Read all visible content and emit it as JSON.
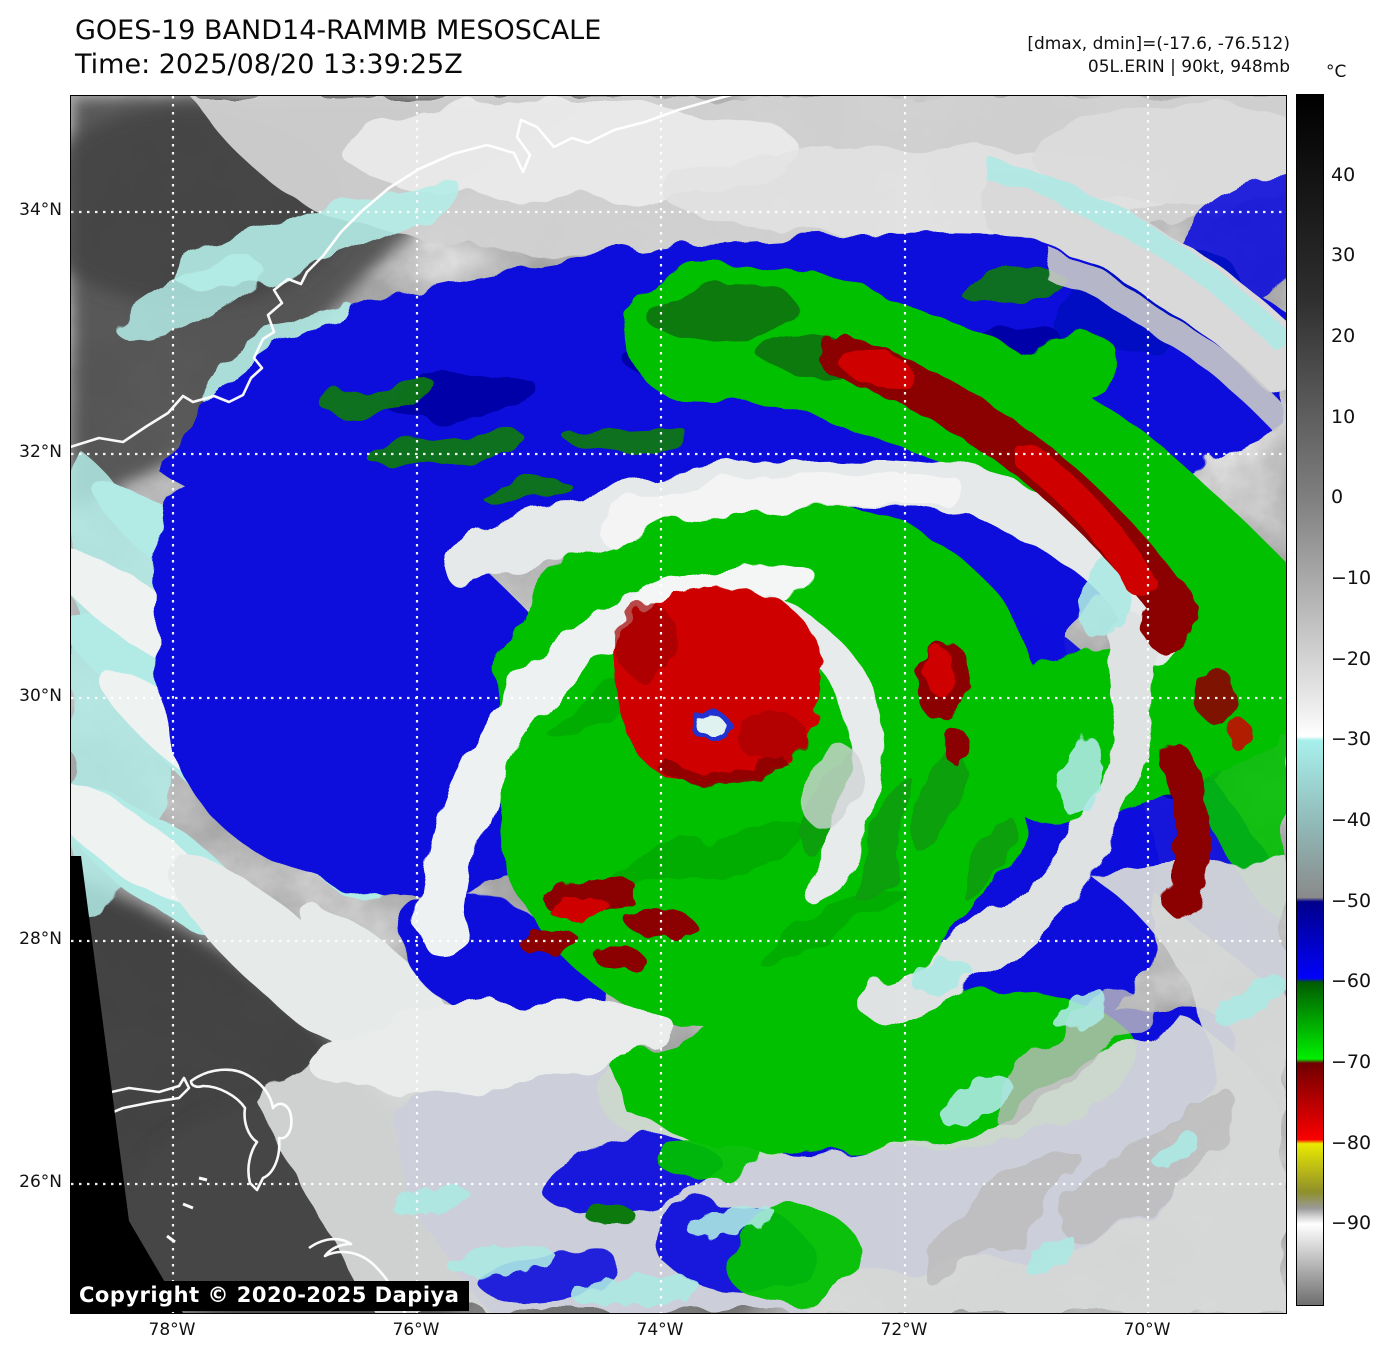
{
  "header": {
    "title": "GOES-19 BAND14-RAMMB MESOSCALE",
    "time_label": "Time: 2025/08/20 13:39:25Z",
    "range_label": "[dmax, dmin]=(-17.6, -76.512)",
    "storm_label": "05L.ERIN | 90kt, 948mb"
  },
  "map": {
    "copyright": "Copyright © 2020-2025 Dapiya",
    "lat_ticks": [
      "34°N",
      "32°N",
      "30°N",
      "28°N",
      "26°N"
    ],
    "lon_ticks": [
      "78°W",
      "76°W",
      "74°W",
      "72°W",
      "70°W"
    ]
  },
  "colorbar": {
    "unit": "°C",
    "ticks": [
      {
        "t": 40,
        "label": "40"
      },
      {
        "t": 30,
        "label": "30"
      },
      {
        "t": 20,
        "label": "20"
      },
      {
        "t": 10,
        "label": "10"
      },
      {
        "t": 0,
        "label": "0"
      },
      {
        "t": -10,
        "label": "−10"
      },
      {
        "t": -20,
        "label": "−20"
      },
      {
        "t": -30,
        "label": "−30"
      },
      {
        "t": -40,
        "label": "−40"
      },
      {
        "t": -50,
        "label": "−50"
      },
      {
        "t": -60,
        "label": "−60"
      },
      {
        "t": -70,
        "label": "−70"
      },
      {
        "t": -80,
        "label": "−80"
      },
      {
        "t": -90,
        "label": "−90"
      }
    ],
    "scale_max": 50,
    "scale_min": -100,
    "stops": [
      {
        "t": 50,
        "c": "#000000"
      },
      {
        "t": 25,
        "c": "#2e2e2e"
      },
      {
        "t": 0,
        "c": "#7f7f7f"
      },
      {
        "t": -26,
        "c": "#ededed"
      },
      {
        "t": -29.5,
        "c": "#ffffff"
      },
      {
        "t": -30,
        "c": "#a8f0ec"
      },
      {
        "t": -41,
        "c": "#8fb6b4"
      },
      {
        "t": -49.5,
        "c": "#8a8a8a"
      },
      {
        "t": -50,
        "c": "#00008b"
      },
      {
        "t": -59.5,
        "c": "#0202fa"
      },
      {
        "t": -60,
        "c": "#015c01"
      },
      {
        "t": -69.5,
        "c": "#00ef00"
      },
      {
        "t": -70,
        "c": "#700000"
      },
      {
        "t": -79.5,
        "c": "#fb0000"
      },
      {
        "t": -80,
        "c": "#eaea00"
      },
      {
        "t": -86,
        "c": "#8f8f2a"
      },
      {
        "t": -88,
        "c": "#9a9a9a"
      },
      {
        "t": -89.2,
        "c": "#dcdcdc"
      },
      {
        "t": -90,
        "c": "#ffffff"
      },
      {
        "t": -100,
        "c": "#6e6e6e"
      }
    ]
  },
  "palette": {
    "blue": "#0a10dc",
    "navy": "#0000a0",
    "green": "#00c000",
    "dark_green": "#0b7a0b",
    "red": "#cf0000",
    "dark_red": "#8b0000",
    "cyan": "#ace9e4",
    "white_cloud": "#efefef",
    "gray_cloud": "#cfcfcf",
    "dark_gray": "#4a4a4a"
  }
}
